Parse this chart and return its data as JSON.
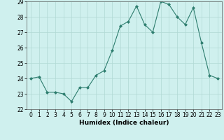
{
  "x": [
    0,
    1,
    2,
    3,
    4,
    5,
    6,
    7,
    8,
    9,
    10,
    11,
    12,
    13,
    14,
    15,
    16,
    17,
    18,
    19,
    20,
    21,
    22,
    23
  ],
  "y": [
    24.0,
    24.1,
    23.1,
    23.1,
    23.0,
    22.5,
    23.4,
    23.4,
    24.2,
    24.5,
    25.8,
    27.4,
    27.7,
    28.7,
    27.5,
    27.0,
    29.0,
    28.8,
    28.0,
    27.5,
    28.6,
    26.3,
    24.2,
    24.0
  ],
  "xlabel": "Humidex (Indice chaleur)",
  "line_color": "#2d7d6e",
  "marker_color": "#2d7d6e",
  "bg_color": "#cff0ee",
  "grid_color": "#b0d8d4",
  "ylim": [
    22,
    29
  ],
  "xlim": [
    -0.5,
    23.5
  ],
  "yticks": [
    22,
    23,
    24,
    25,
    26,
    27,
    28,
    29
  ],
  "xticks": [
    0,
    1,
    2,
    3,
    4,
    5,
    6,
    7,
    8,
    9,
    10,
    11,
    12,
    13,
    14,
    15,
    16,
    17,
    18,
    19,
    20,
    21,
    22,
    23
  ],
  "tick_fontsize": 5.5,
  "xlabel_fontsize": 6.5
}
